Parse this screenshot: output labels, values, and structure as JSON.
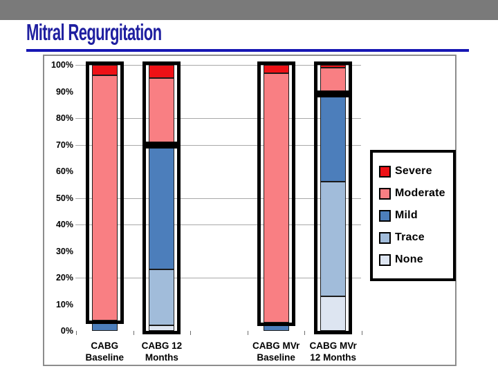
{
  "slide": {
    "title": "Mitral Regurgitation"
  },
  "chart_data": {
    "type": "bar",
    "stacked": true,
    "orientation": "vertical",
    "title": "",
    "xlabel": "",
    "ylabel": "",
    "categories": [
      "CABG Baseline",
      "CABG 12 Months",
      "CABG MVr Baseline",
      "CABG MVr 12 Months"
    ],
    "category_label_lines": [
      [
        "CABG",
        "Baseline"
      ],
      [
        "CABG 12",
        "Months"
      ],
      [
        "CABG MVr",
        "Baseline"
      ],
      [
        "CABG MVr",
        "12 Months"
      ]
    ],
    "series": [
      {
        "name": "Severe",
        "color": "#ee1116",
        "values": [
          4,
          5,
          3,
          1
        ]
      },
      {
        "name": "Moderate",
        "color": "#f97f83",
        "values": [
          92,
          25,
          94,
          10
        ]
      },
      {
        "name": "Mild",
        "color": "#4c7ebb",
        "values": [
          4,
          47,
          3,
          33
        ]
      },
      {
        "name": "Trace",
        "color": "#a1bcda",
        "values": [
          0,
          21,
          0,
          43
        ]
      },
      {
        "name": "None",
        "color": "#dde5f1",
        "values": [
          0,
          2,
          0,
          13
        ]
      }
    ],
    "y_axis": {
      "min": 0,
      "max": 100,
      "tick_step": 10,
      "unit": "%",
      "tick_labels": [
        "100%",
        "90%",
        "80%",
        "70%",
        "60%",
        "50%",
        "40%",
        "30%",
        "20%",
        "10%",
        "0%"
      ]
    },
    "gridlines_at": [
      100,
      80,
      70,
      50,
      40,
      20
    ],
    "legend": {
      "position": "right",
      "items": [
        "Severe",
        "Moderate",
        "Mild",
        "Trace",
        "None"
      ]
    },
    "bar_group_frames": [
      [
        [
          100,
          4
        ]
      ],
      [
        [
          100,
          70
        ],
        [
          70,
          0
        ]
      ],
      [
        [
          100,
          3
        ]
      ],
      [
        [
          100,
          89
        ],
        [
          89,
          0
        ]
      ]
    ],
    "category_slots": [
      0,
      1,
      3,
      4
    ],
    "slot_count": 5
  }
}
